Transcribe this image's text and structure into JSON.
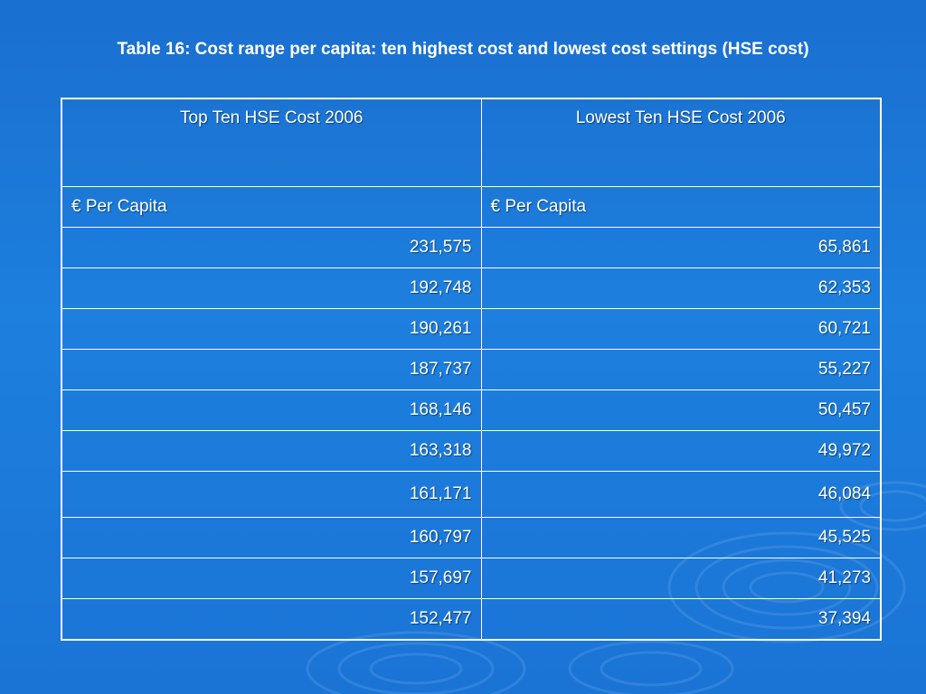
{
  "title": "Table 16: Cost range per capita: ten highest cost and lowest cost settings (HSE cost)",
  "table": {
    "headers": [
      "Top Ten HSE Cost 2006",
      "Lowest Ten HSE Cost 2006"
    ],
    "subheaders": [
      "€ Per Capita",
      "€ Per Capita"
    ],
    "rows": [
      [
        "231,575",
        "65,861"
      ],
      [
        "192,748",
        "62,353"
      ],
      [
        "190,261",
        "60,721"
      ],
      [
        "187,737",
        "55,227"
      ],
      [
        "168,146",
        "50,457"
      ],
      [
        "163,318",
        "49,972"
      ],
      [
        "161,171",
        "46,084"
      ],
      [
        "160,797",
        "45,525"
      ],
      [
        "157,697",
        "41,273"
      ],
      [
        "152,477",
        "37,394"
      ]
    ]
  },
  "colors": {
    "background": "#1d7fde",
    "text": "#ffffff",
    "border": "#ffffff"
  }
}
